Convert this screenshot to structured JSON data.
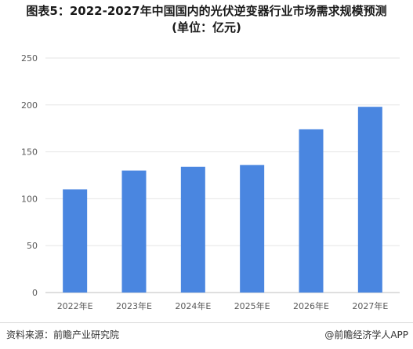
{
  "chart_data": {
    "type": "bar",
    "title": "图表5：2022-2027年中国国内的光伏逆变器行业市场需求规模预测",
    "subtitle": "(单位：亿元)",
    "categories": [
      "2022年E",
      "2023年E",
      "2024年E",
      "2025年E",
      "2026年E",
      "2027年E"
    ],
    "values": [
      110,
      130,
      134,
      136,
      174,
      198
    ],
    "ylim": [
      0,
      250
    ],
    "yticks": [
      0,
      50,
      100,
      150,
      200,
      250
    ],
    "grid": true,
    "bar_color": "#4a86e0"
  },
  "footer": {
    "source": "资料来源：前瞻产业研究院",
    "brand": "@前瞻经济学人APP"
  }
}
